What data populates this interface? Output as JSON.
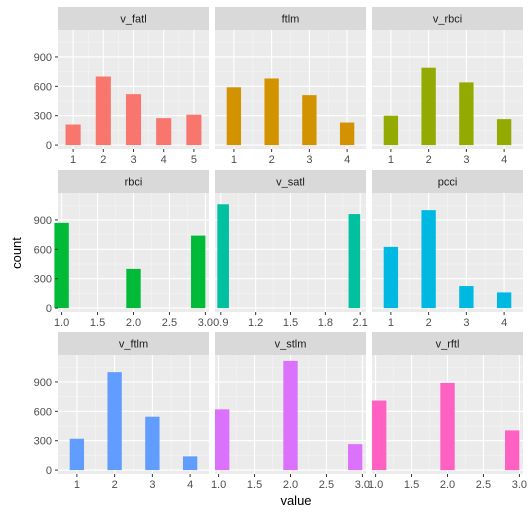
{
  "chart_data": {
    "type": "bar",
    "layout": "facet-grid-3x3",
    "xlabel": "value",
    "ylabel": "count",
    "ylim": [
      -40,
      1175
    ],
    "yticks": [
      0,
      300,
      600,
      900
    ],
    "grid": true,
    "legend": "none",
    "panels": [
      {
        "title": "v_fatl",
        "color": "#F8766D",
        "xlim": [
          0.5,
          5.5
        ],
        "xticks": [
          1,
          2,
          3,
          4,
          5
        ],
        "xtick_labels": [
          "1",
          "2",
          "3",
          "4",
          "5"
        ],
        "bar_width": 0.5,
        "x": [
          1,
          2,
          3,
          4,
          5
        ],
        "values": [
          210,
          700,
          520,
          275,
          310
        ]
      },
      {
        "title": "ftlm",
        "color": "#D39200",
        "xlim": [
          0.5,
          4.5
        ],
        "xticks": [
          1,
          2,
          3,
          4
        ],
        "xtick_labels": [
          "1",
          "2",
          "3",
          "4"
        ],
        "bar_width": 0.38,
        "x": [
          1,
          2,
          3,
          4
        ],
        "values": [
          590,
          680,
          510,
          230
        ]
      },
      {
        "title": "v_rbci",
        "color": "#93AA00",
        "xlim": [
          0.5,
          4.5
        ],
        "xticks": [
          1,
          2,
          3,
          4
        ],
        "xtick_labels": [
          "1",
          "2",
          "3",
          "4"
        ],
        "bar_width": 0.38,
        "x": [
          1,
          2,
          3,
          4
        ],
        "values": [
          300,
          790,
          640,
          265
        ]
      },
      {
        "title": "rbci",
        "color": "#00BA38",
        "xlim": [
          0.95,
          3.05
        ],
        "xticks": [
          1.0,
          1.5,
          2.0,
          2.5,
          3.0
        ],
        "xtick_labels": [
          "1.0",
          "1.5",
          "2.0",
          "2.5",
          "3.0"
        ],
        "bar_width": 0.2,
        "x": [
          1,
          2,
          2.9
        ],
        "values": [
          870,
          400,
          740
        ]
      },
      {
        "title": "v_satl",
        "color": "#00C19F",
        "xlim": [
          0.85,
          2.15
        ],
        "xticks": [
          0.9,
          1.2,
          1.5,
          1.8,
          2.1
        ],
        "xtick_labels": [
          "0.9",
          "1.2",
          "1.5",
          "1.8",
          "2.1"
        ],
        "bar_width": 0.1,
        "x": [
          0.92,
          2.05
        ],
        "values": [
          1060,
          960
        ]
      },
      {
        "title": "pcci",
        "color": "#00B9E3",
        "xlim": [
          0.5,
          4.5
        ],
        "xticks": [
          1,
          2,
          3,
          4
        ],
        "xtick_labels": [
          "1",
          "2",
          "3",
          "4"
        ],
        "bar_width": 0.38,
        "x": [
          1,
          2,
          3,
          4
        ],
        "values": [
          625,
          1000,
          225,
          160
        ]
      },
      {
        "title": "v_ftlm",
        "color": "#619CFF",
        "xlim": [
          0.5,
          4.5
        ],
        "xticks": [
          1,
          2,
          3,
          4
        ],
        "xtick_labels": [
          "1",
          "2",
          "3",
          "4"
        ],
        "bar_width": 0.38,
        "x": [
          1,
          2,
          3,
          4
        ],
        "values": [
          320,
          1000,
          545,
          140
        ]
      },
      {
        "title": "v_stlm",
        "color": "#DB72FB",
        "xlim": [
          0.95,
          3.05
        ],
        "xticks": [
          1.0,
          1.5,
          2.0,
          2.5,
          3.0
        ],
        "xtick_labels": [
          "1.0",
          "1.5",
          "2.0",
          "2.5",
          "3.0"
        ],
        "bar_width": 0.2,
        "x": [
          1.05,
          2,
          2.9
        ],
        "values": [
          620,
          1115,
          265
        ]
      },
      {
        "title": "v_rftl",
        "color": "#FF61C3",
        "xlim": [
          0.95,
          3.05
        ],
        "xticks": [
          1.0,
          1.5,
          2.0,
          2.5,
          3.0
        ],
        "xtick_labels": [
          "1.0",
          "1.5",
          "2.0",
          "2.5",
          "3.0"
        ],
        "bar_width": 0.2,
        "x": [
          1.05,
          2,
          2.9
        ],
        "values": [
          710,
          890,
          405
        ]
      }
    ]
  }
}
